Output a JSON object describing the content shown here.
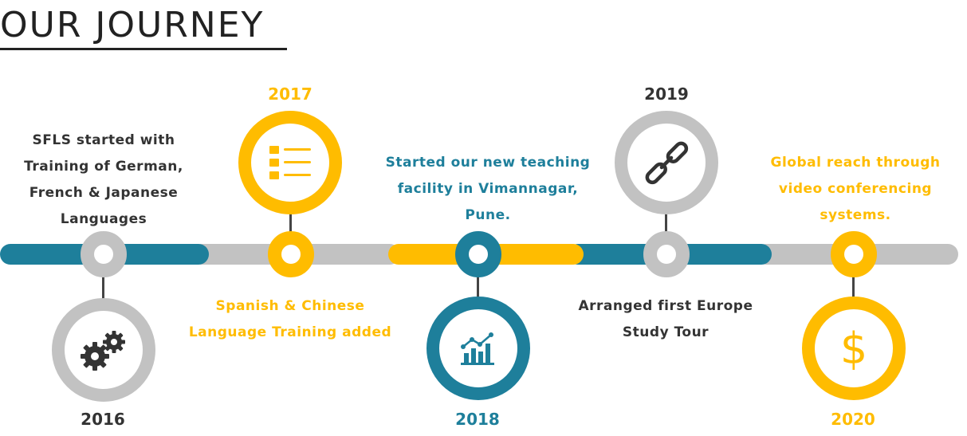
{
  "title": "OUR JOURNEY",
  "milestones": [
    {
      "year": "2016",
      "description": "SFLS started with Training of German, French & Japanese Languages",
      "icon": "gears-icon",
      "color": "#c2c2c2"
    },
    {
      "year": "2017",
      "description": "Spanish & Chinese Language Training added",
      "icon": "list-icon",
      "color": "#ffbc00"
    },
    {
      "year": "2018",
      "description": "Started our new teaching facility in Vimannagar, Pune.",
      "icon": "bar-chart-icon",
      "color": "#1e7f9b"
    },
    {
      "year": "2019",
      "description": "Arranged first Europe Study Tour",
      "icon": "link-icon",
      "color": "#c2c2c2"
    },
    {
      "year": "2020",
      "description": "Global reach through video conferencing systems.",
      "icon": "dollar-icon",
      "color": "#ffbc00"
    }
  ]
}
